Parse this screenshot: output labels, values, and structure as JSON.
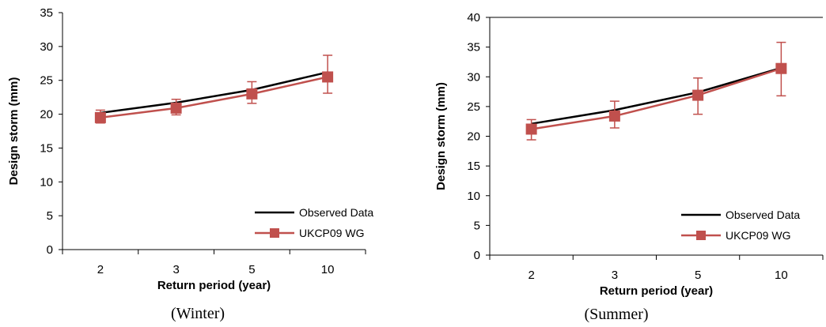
{
  "chart_data": [
    {
      "type": "line",
      "caption": "(Winter)",
      "categories": [
        "2",
        "3",
        "5",
        "10"
      ],
      "xlabel": "Return period (year)",
      "ylabel": "Design storm (mm)",
      "ylim": [
        0,
        35
      ],
      "yticks": [
        "0",
        "5",
        "10",
        "15",
        "20",
        "25",
        "30",
        "35"
      ],
      "grid": false,
      "legend_position": "bottom-right",
      "series": [
        {
          "name": "Observed Data",
          "color": "#000000",
          "marker": "none",
          "values": [
            20.2,
            21.7,
            23.6,
            26.2
          ]
        },
        {
          "name": "UKCP09 WG",
          "color": "#c0504d",
          "marker": "square",
          "values": [
            19.5,
            20.9,
            23.0,
            25.5
          ],
          "error_low": [
            18.7,
            19.9,
            21.6,
            23.1
          ],
          "error_high": [
            20.6,
            22.2,
            24.8,
            28.7
          ]
        }
      ]
    },
    {
      "type": "line",
      "caption": "(Summer)",
      "categories": [
        "2",
        "3",
        "5",
        "10"
      ],
      "xlabel": "Return period (year)",
      "ylabel": "Design storm (mm)",
      "ylim": [
        0,
        40
      ],
      "yticks": [
        "0",
        "5",
        "10",
        "15",
        "20",
        "25",
        "30",
        "35",
        "40"
      ],
      "grid": false,
      "legend_position": "bottom-right",
      "series": [
        {
          "name": "Observed Data",
          "color": "#000000",
          "marker": "none",
          "values": [
            22.1,
            24.4,
            27.4,
            31.5
          ]
        },
        {
          "name": "UKCP09 WG",
          "color": "#c0504d",
          "marker": "square",
          "values": [
            21.2,
            23.4,
            26.9,
            31.4
          ],
          "error_low": [
            19.4,
            21.4,
            23.7,
            26.8
          ],
          "error_high": [
            22.8,
            25.9,
            29.8,
            35.8
          ]
        }
      ]
    }
  ]
}
